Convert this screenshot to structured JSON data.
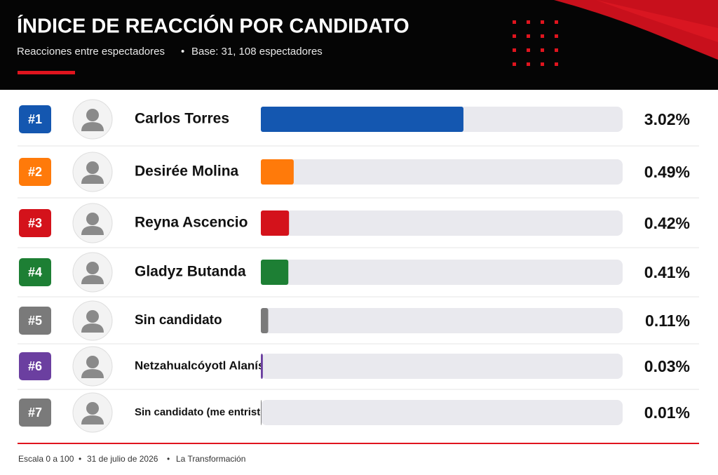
{
  "chart_data": {
    "type": "bar",
    "title": "ÍNDICE DE REACCIÓN POR CANDIDATO",
    "subtitle": [
      "Reacciones entre espectadores",
      "Base: 31, 108 espectadores"
    ],
    "rank_labels": [
      "#1",
      "#2",
      "#3",
      "#4",
      "#5",
      "#6",
      "#7"
    ],
    "categories": [
      "Carlos Torres",
      "Desirée Molina",
      "Reyna Ascencio",
      "Gladyz Butanda",
      "Sin candidato",
      "Netzahualcóyotl Alanís",
      "Sin candidato (me entristece)"
    ],
    "values": [
      3.02,
      0.49,
      0.42,
      0.41,
      0.11,
      0.03,
      0.01
    ],
    "value_labels": [
      "3.02%",
      "0.49%",
      "0.42%",
      "0.41%",
      "0.11%",
      "0.03%",
      "0.01%"
    ],
    "colors": [
      "#1457b0",
      "#ff7a0a",
      "#d4121b",
      "#1d7f34",
      "#7a7a7a",
      "#6b3fa0",
      "#7a7a7a"
    ],
    "footer": [
      "Escala 0 a 100",
      "31 de julio de 2026",
      "La Transformación"
    ]
  }
}
